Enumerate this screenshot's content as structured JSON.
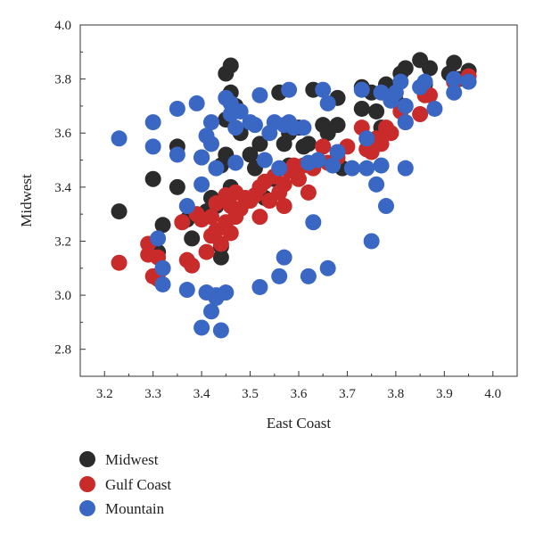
{
  "chart_data": {
    "type": "scatter",
    "xlabel": "East Coast",
    "ylabel": "Midwest",
    "xlim": [
      3.15,
      4.05
    ],
    "ylim": [
      2.7,
      4.0
    ],
    "xticks": [
      "3.2",
      "3.3",
      "3.4",
      "3.5",
      "3.6",
      "3.7",
      "3.8",
      "3.9",
      "4.0"
    ],
    "yticks": [
      "2.8",
      "3.0",
      "3.2",
      "3.4",
      "3.6",
      "3.8",
      "4.0"
    ],
    "legend_position": "bottom-left",
    "series": [
      {
        "name": "Midwest",
        "color": "#2b2b2b",
        "points": [
          [
            3.23,
            3.31
          ],
          [
            3.3,
            3.43
          ],
          [
            3.31,
            3.16
          ],
          [
            3.32,
            3.26
          ],
          [
            3.35,
            3.55
          ],
          [
            3.35,
            3.4
          ],
          [
            3.37,
            3.28
          ],
          [
            3.38,
            3.21
          ],
          [
            3.4,
            3.51
          ],
          [
            3.41,
            3.31
          ],
          [
            3.42,
            3.36
          ],
          [
            3.43,
            3.33
          ],
          [
            3.44,
            3.18
          ],
          [
            3.44,
            3.14
          ],
          [
            3.45,
            3.82
          ],
          [
            3.46,
            3.85
          ],
          [
            3.45,
            3.65
          ],
          [
            3.46,
            3.75
          ],
          [
            3.47,
            3.7
          ],
          [
            3.48,
            3.6
          ],
          [
            3.44,
            3.48
          ],
          [
            3.45,
            3.52
          ],
          [
            3.46,
            3.4
          ],
          [
            3.5,
            3.52
          ],
          [
            3.51,
            3.47
          ],
          [
            3.52,
            3.56
          ],
          [
            3.53,
            3.36
          ],
          [
            3.55,
            3.43
          ],
          [
            3.56,
            3.75
          ],
          [
            3.57,
            3.56
          ],
          [
            3.58,
            3.6
          ],
          [
            3.58,
            3.48
          ],
          [
            3.6,
            3.62
          ],
          [
            3.61,
            3.55
          ],
          [
            3.62,
            3.56
          ],
          [
            3.63,
            3.76
          ],
          [
            3.65,
            3.63
          ],
          [
            3.66,
            3.6
          ],
          [
            3.68,
            3.73
          ],
          [
            3.68,
            3.63
          ],
          [
            3.69,
            3.47
          ],
          [
            3.73,
            3.77
          ],
          [
            3.73,
            3.69
          ],
          [
            3.75,
            3.75
          ],
          [
            3.76,
            3.68
          ],
          [
            3.77,
            3.62
          ],
          [
            3.78,
            3.78
          ],
          [
            3.8,
            3.72
          ],
          [
            3.81,
            3.82
          ],
          [
            3.82,
            3.84
          ],
          [
            3.85,
            3.87
          ],
          [
            3.86,
            3.78
          ],
          [
            3.87,
            3.84
          ],
          [
            3.91,
            3.82
          ],
          [
            3.92,
            3.86
          ],
          [
            3.95,
            3.83
          ],
          [
            3.93,
            3.8
          ]
        ]
      },
      {
        "name": "Gulf Coast",
        "color": "#c92a2a",
        "points": [
          [
            3.23,
            3.12
          ],
          [
            3.29,
            3.19
          ],
          [
            3.29,
            3.15
          ],
          [
            3.3,
            3.07
          ],
          [
            3.31,
            3.06
          ],
          [
            3.31,
            3.14
          ],
          [
            3.32,
            3.1
          ],
          [
            3.36,
            3.27
          ],
          [
            3.37,
            3.13
          ],
          [
            3.38,
            3.11
          ],
          [
            3.39,
            3.3
          ],
          [
            3.4,
            3.28
          ],
          [
            3.41,
            3.16
          ],
          [
            3.42,
            3.22
          ],
          [
            3.42,
            3.29
          ],
          [
            3.43,
            3.34
          ],
          [
            3.43,
            3.24
          ],
          [
            3.44,
            3.19
          ],
          [
            3.45,
            3.27
          ],
          [
            3.45,
            3.37
          ],
          [
            3.46,
            3.33
          ],
          [
            3.46,
            3.23
          ],
          [
            3.47,
            3.38
          ],
          [
            3.47,
            3.29
          ],
          [
            3.48,
            3.32
          ],
          [
            3.49,
            3.36
          ],
          [
            3.5,
            3.35
          ],
          [
            3.51,
            3.37
          ],
          [
            3.52,
            3.29
          ],
          [
            3.52,
            3.4
          ],
          [
            3.53,
            3.42
          ],
          [
            3.54,
            3.35
          ],
          [
            3.55,
            3.44
          ],
          [
            3.56,
            3.38
          ],
          [
            3.57,
            3.41
          ],
          [
            3.57,
            3.33
          ],
          [
            3.58,
            3.46
          ],
          [
            3.59,
            3.48
          ],
          [
            3.6,
            3.43
          ],
          [
            3.61,
            3.48
          ],
          [
            3.62,
            3.38
          ],
          [
            3.63,
            3.47
          ],
          [
            3.65,
            3.55
          ],
          [
            3.66,
            3.49
          ],
          [
            3.68,
            3.51
          ],
          [
            3.7,
            3.55
          ],
          [
            3.73,
            3.62
          ],
          [
            3.74,
            3.54
          ],
          [
            3.75,
            3.53
          ],
          [
            3.76,
            3.58
          ],
          [
            3.77,
            3.56
          ],
          [
            3.78,
            3.62
          ],
          [
            3.79,
            3.6
          ],
          [
            3.81,
            3.68
          ],
          [
            3.82,
            3.64
          ],
          [
            3.85,
            3.67
          ],
          [
            3.86,
            3.74
          ],
          [
            3.87,
            3.74
          ],
          [
            3.92,
            3.79
          ],
          [
            3.95,
            3.81
          ]
        ]
      },
      {
        "name": "Mountain",
        "color": "#3a66c4",
        "points": [
          [
            3.23,
            3.58
          ],
          [
            3.3,
            3.64
          ],
          [
            3.3,
            3.55
          ],
          [
            3.31,
            3.21
          ],
          [
            3.32,
            3.1
          ],
          [
            3.32,
            3.04
          ],
          [
            3.35,
            3.69
          ],
          [
            3.35,
            3.52
          ],
          [
            3.37,
            3.33
          ],
          [
            3.37,
            3.02
          ],
          [
            3.39,
            3.71
          ],
          [
            3.4,
            3.51
          ],
          [
            3.4,
            3.41
          ],
          [
            3.4,
            2.88
          ],
          [
            3.41,
            3.01
          ],
          [
            3.41,
            3.59
          ],
          [
            3.42,
            3.64
          ],
          [
            3.42,
            3.56
          ],
          [
            3.43,
            3.47
          ],
          [
            3.42,
            2.94
          ],
          [
            3.43,
            2.99
          ],
          [
            3.43,
            3.0
          ],
          [
            3.44,
            2.87
          ],
          [
            3.45,
            3.01
          ],
          [
            3.45,
            3.73
          ],
          [
            3.46,
            3.71
          ],
          [
            3.46,
            3.67
          ],
          [
            3.47,
            3.62
          ],
          [
            3.47,
            3.49
          ],
          [
            3.48,
            3.68
          ],
          [
            3.5,
            3.64
          ],
          [
            3.51,
            3.63
          ],
          [
            3.52,
            3.74
          ],
          [
            3.52,
            3.03
          ],
          [
            3.53,
            3.5
          ],
          [
            3.54,
            3.6
          ],
          [
            3.55,
            3.64
          ],
          [
            3.56,
            3.07
          ],
          [
            3.56,
            3.47
          ],
          [
            3.57,
            3.63
          ],
          [
            3.57,
            3.14
          ],
          [
            3.58,
            3.76
          ],
          [
            3.58,
            3.64
          ],
          [
            3.59,
            3.62
          ],
          [
            3.61,
            3.62
          ],
          [
            3.62,
            3.49
          ],
          [
            3.62,
            3.07
          ],
          [
            3.63,
            3.27
          ],
          [
            3.64,
            3.5
          ],
          [
            3.65,
            3.76
          ],
          [
            3.66,
            3.1
          ],
          [
            3.66,
            3.71
          ],
          [
            3.67,
            3.48
          ],
          [
            3.68,
            3.53
          ],
          [
            3.71,
            3.47
          ],
          [
            3.73,
            3.76
          ],
          [
            3.74,
            3.58
          ],
          [
            3.74,
            3.47
          ],
          [
            3.75,
            3.2
          ],
          [
            3.76,
            3.41
          ],
          [
            3.77,
            3.75
          ],
          [
            3.77,
            3.48
          ],
          [
            3.78,
            3.33
          ],
          [
            3.79,
            3.72
          ],
          [
            3.8,
            3.75
          ],
          [
            3.81,
            3.79
          ],
          [
            3.82,
            3.64
          ],
          [
            3.82,
            3.7
          ],
          [
            3.82,
            3.47
          ],
          [
            3.85,
            3.77
          ],
          [
            3.86,
            3.79
          ],
          [
            3.88,
            3.69
          ],
          [
            3.92,
            3.8
          ],
          [
            3.92,
            3.75
          ],
          [
            3.95,
            3.79
          ]
        ]
      }
    ]
  }
}
